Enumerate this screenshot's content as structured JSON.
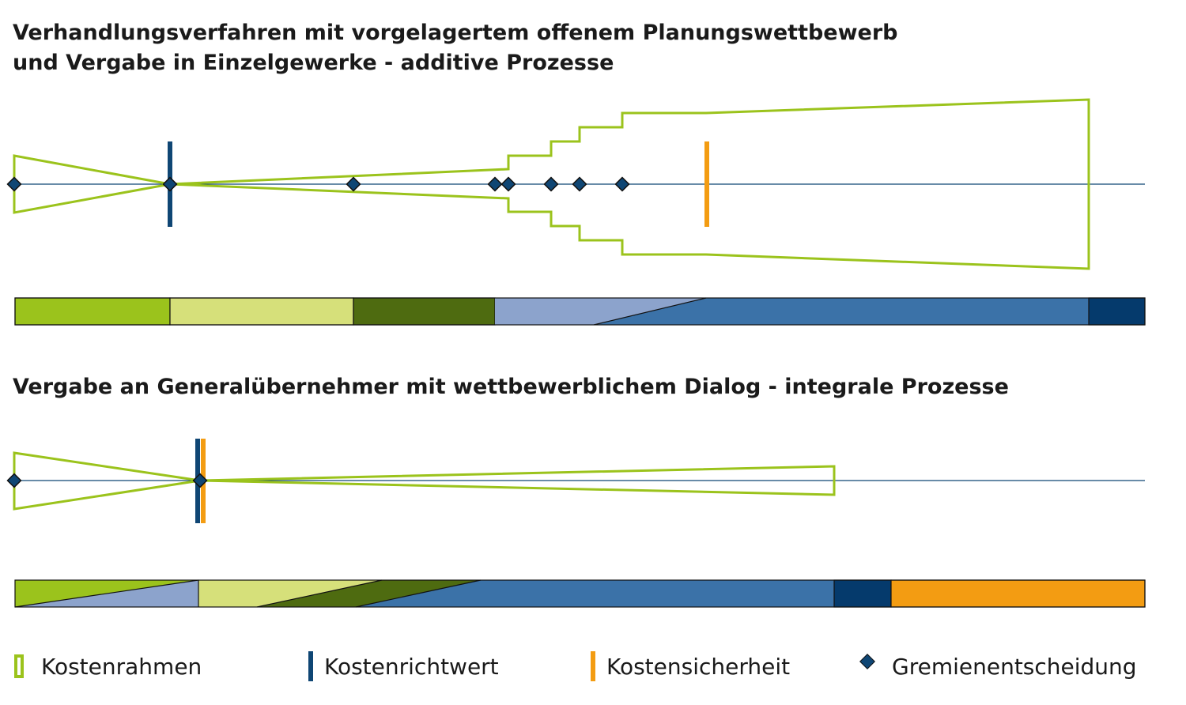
{
  "title_1_line1": "Verhandlungsverfahren mit vorgelagertem offenem Planungswettbewerb",
  "title_1_line2": "und Vergabe in Einzelgewerke - additive Prozesse",
  "title_2": "Vergabe an Generalübernehmer mit wettbewerblichem Dialog - integrale Prozesse",
  "colors": {
    "kostenrahmen": "#9bc31c",
    "kostenrichtwert": "#0f4674",
    "kostensicherheit": "#f39c12",
    "diamond": "#0f4674",
    "phase_green": "#9bc31c",
    "phase_light_green": "#d6e07a",
    "phase_dark_green": "#4e6b10",
    "phase_light_blue": "#8ca3cc",
    "phase_blue": "#3b72a8",
    "phase_navy": "#053a6c",
    "phase_orange": "#f39c12"
  },
  "legend": [
    {
      "label": "Kostenrahmen",
      "icon": "green-frame"
    },
    {
      "label": "Kostenrichtwert",
      "icon": "navy-bar"
    },
    {
      "label": "Kostensicherheit",
      "icon": "orange-bar"
    },
    {
      "label": "Gremienentscheidung",
      "icon": "diamond"
    }
  ]
}
